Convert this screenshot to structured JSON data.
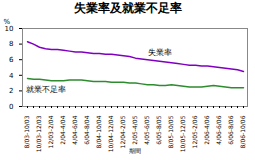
{
  "chart_data": {
    "type": "line",
    "title": "失業率及就業不足率",
    "x_label": "期間",
    "y_label": "%",
    "categories": [
      "8/03-10/03",
      null,
      "10/03-12/03",
      null,
      "12/03-2/04",
      null,
      "2/04-4/04",
      null,
      "4/04-6/04",
      null,
      "6/04-8/04",
      null,
      "8/04-10/04",
      null,
      "10/04-12/04",
      null,
      "12/04-2/05",
      null,
      "2/05-4/05",
      null,
      "4/05-6/05",
      null,
      "6/05-8/05",
      null,
      "8/05-10/05",
      null,
      "10/05-12/05",
      null,
      "12/05-2/06",
      null,
      "2/06-4/06",
      null,
      "4/06-6/06",
      null,
      "6/06-8/06",
      null,
      "8/06-10/06"
    ],
    "series": [
      {
        "name": "失業率",
        "color": "#8000c0",
        "values": [
          8.3,
          8.0,
          7.6,
          7.4,
          7.3,
          7.3,
          7.2,
          7.1,
          7.0,
          7.0,
          6.9,
          6.8,
          6.8,
          6.7,
          6.7,
          6.6,
          6.5,
          6.4,
          6.2,
          6.1,
          6.0,
          5.9,
          5.8,
          5.7,
          5.6,
          5.5,
          5.4,
          5.3,
          5.3,
          5.2,
          5.2,
          5.1,
          5.0,
          4.9,
          4.8,
          4.7,
          4.5
        ]
      },
      {
        "name": "就業不足率",
        "color": "#2e8b2e",
        "values": [
          3.6,
          3.5,
          3.5,
          3.4,
          3.3,
          3.3,
          3.3,
          3.4,
          3.4,
          3.4,
          3.3,
          3.2,
          3.2,
          3.2,
          3.1,
          3.1,
          3.1,
          3.0,
          3.0,
          2.9,
          2.8,
          2.8,
          2.7,
          2.7,
          2.8,
          2.7,
          2.6,
          2.5,
          2.5,
          2.5,
          2.6,
          2.7,
          2.6,
          2.5,
          2.4,
          2.4,
          2.4
        ]
      }
    ],
    "ylim": [
      0,
      10
    ],
    "yticks": [
      0,
      2,
      4,
      6,
      8,
      10
    ],
    "grid": false
  }
}
